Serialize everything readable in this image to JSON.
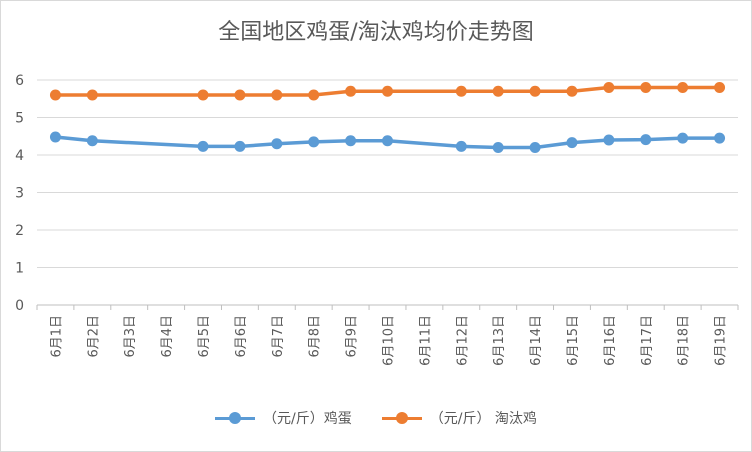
{
  "chart_data": {
    "type": "line",
    "title": "全国地区鸡蛋/淘汰鸡均价走势图",
    "categories": [
      "6月1日",
      "6月2日",
      "6月3日",
      "6月4日",
      "6月5日",
      "6月6日",
      "6月7日",
      "6月8日",
      "6月9日",
      "6月10日",
      "6月11日",
      "6月12日",
      "6月13日",
      "6月14日",
      "6月15日",
      "6月16日",
      "6月17日",
      "6月18日",
      "6月19日"
    ],
    "series": [
      {
        "name": "（元/斤）鸡蛋",
        "color": "#5b9bd5",
        "values": [
          4.48,
          4.38,
          null,
          null,
          4.23,
          4.23,
          4.3,
          4.35,
          4.38,
          4.38,
          null,
          4.23,
          4.2,
          4.2,
          4.33,
          4.4,
          4.41,
          4.45,
          4.45
        ]
      },
      {
        "name": "（元/斤） 淘汰鸡",
        "color": "#ed7d31",
        "values": [
          5.6,
          5.6,
          null,
          null,
          5.6,
          5.6,
          5.6,
          5.6,
          5.7,
          5.7,
          null,
          5.7,
          5.7,
          5.7,
          5.7,
          5.8,
          5.8,
          5.8,
          5.8
        ]
      }
    ],
    "ylim": [
      0,
      6
    ],
    "yticks": [
      0,
      1,
      2,
      3,
      4,
      5,
      6
    ],
    "grid": true,
    "legend_position": "bottom"
  }
}
